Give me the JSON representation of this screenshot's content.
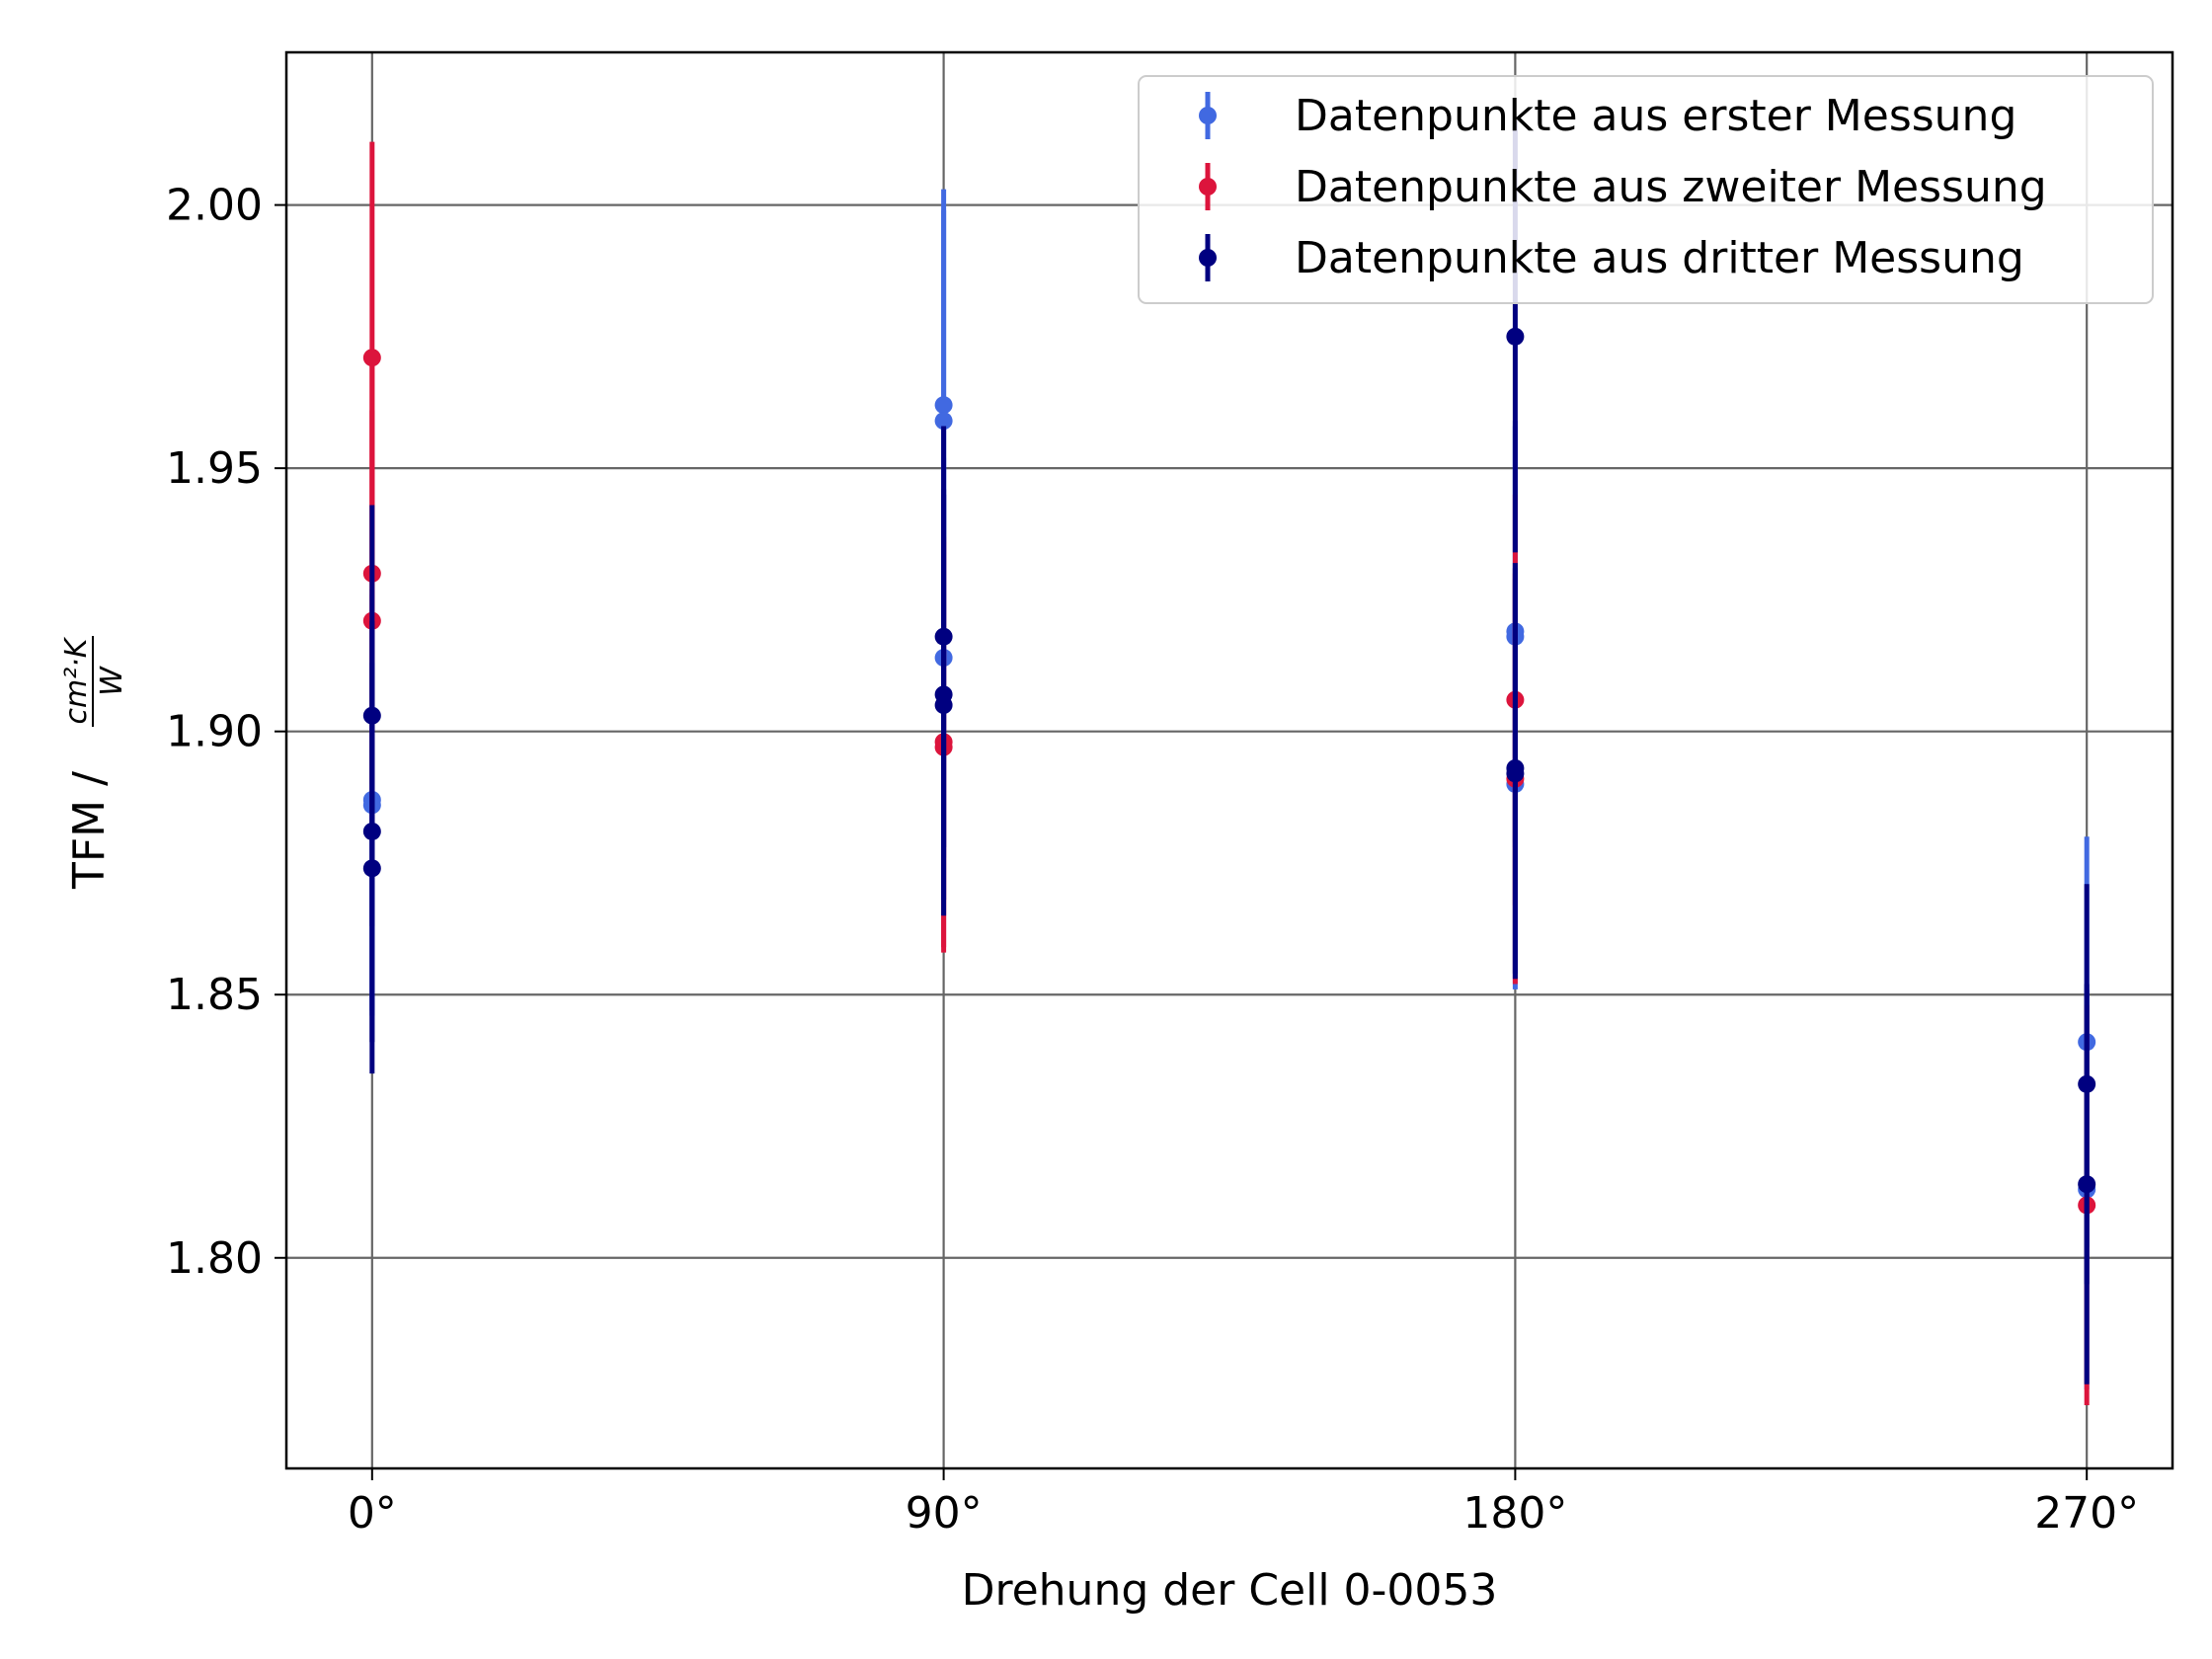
{
  "chart_data": {
    "type": "scatter",
    "title": "",
    "xlabel": "Drehung der Cell 0-0053",
    "ylabel": "TFM / cm²·K / W",
    "ylabel_prefix": "TFM / ",
    "ylabel_fraction_numerator": "cm²·K",
    "ylabel_fraction_denominator": "W",
    "x_categories": [
      "0°",
      "90°",
      "180°",
      "270°"
    ],
    "x_values": [
      0,
      90,
      180,
      270
    ],
    "xlim": [
      -13.5,
      283.5
    ],
    "ylim": [
      1.76,
      2.029
    ],
    "yticks": [
      "1.80",
      "1.85",
      "1.90",
      "1.95",
      "2.00"
    ],
    "ytick_values": [
      1.8,
      1.85,
      1.9,
      1.95,
      2.0
    ],
    "grid": true,
    "legend_position": "top-right",
    "error_bars": true,
    "series": [
      {
        "name": "Datenpunkte aus erster Messung",
        "color": "#4169e1",
        "points": [
          {
            "x": 0,
            "y": 1.887,
            "err": 0.04
          },
          {
            "x": 0,
            "y": 1.886,
            "err": 0.04
          },
          {
            "x": 90,
            "y": 1.962,
            "err": 0.041
          },
          {
            "x": 90,
            "y": 1.959,
            "err": 0.04
          },
          {
            "x": 90,
            "y": 1.914,
            "err": 0.038
          },
          {
            "x": 180,
            "y": 1.919,
            "err": 0.04
          },
          {
            "x": 180,
            "y": 1.918,
            "err": 0.04
          },
          {
            "x": 180,
            "y": 1.89,
            "err": 0.039
          },
          {
            "x": 270,
            "y": 1.841,
            "err": 0.039
          },
          {
            "x": 270,
            "y": 1.813,
            "err": 0.038
          }
        ]
      },
      {
        "name": "Datenpunkte aus zweiter Messung",
        "color": "#dc143c",
        "points": [
          {
            "x": 0,
            "y": 1.971,
            "err": 0.041
          },
          {
            "x": 0,
            "y": 1.93,
            "err": 0.04
          },
          {
            "x": 0,
            "y": 1.921,
            "err": 0.04
          },
          {
            "x": 90,
            "y": 1.898,
            "err": 0.039
          },
          {
            "x": 90,
            "y": 1.897,
            "err": 0.039
          },
          {
            "x": 180,
            "y": 1.906,
            "err": 0.039
          },
          {
            "x": 180,
            "y": 1.891,
            "err": 0.039
          },
          {
            "x": 270,
            "y": 1.81,
            "err": 0.038
          }
        ]
      },
      {
        "name": "Datenpunkte aus dritter Messung",
        "color": "#000080",
        "points": [
          {
            "x": 0,
            "y": 1.903,
            "err": 0.04
          },
          {
            "x": 0,
            "y": 1.881,
            "err": 0.04
          },
          {
            "x": 0,
            "y": 1.874,
            "err": 0.039
          },
          {
            "x": 90,
            "y": 1.918,
            "err": 0.04
          },
          {
            "x": 90,
            "y": 1.907,
            "err": 0.039
          },
          {
            "x": 90,
            "y": 1.905,
            "err": 0.04
          },
          {
            "x": 180,
            "y": 1.975,
            "err": 0.041
          },
          {
            "x": 180,
            "y": 1.893,
            "err": 0.039
          },
          {
            "x": 180,
            "y": 1.892,
            "err": 0.039
          },
          {
            "x": 270,
            "y": 1.833,
            "err": 0.038
          },
          {
            "x": 270,
            "y": 1.814,
            "err": 0.038
          }
        ]
      }
    ]
  }
}
